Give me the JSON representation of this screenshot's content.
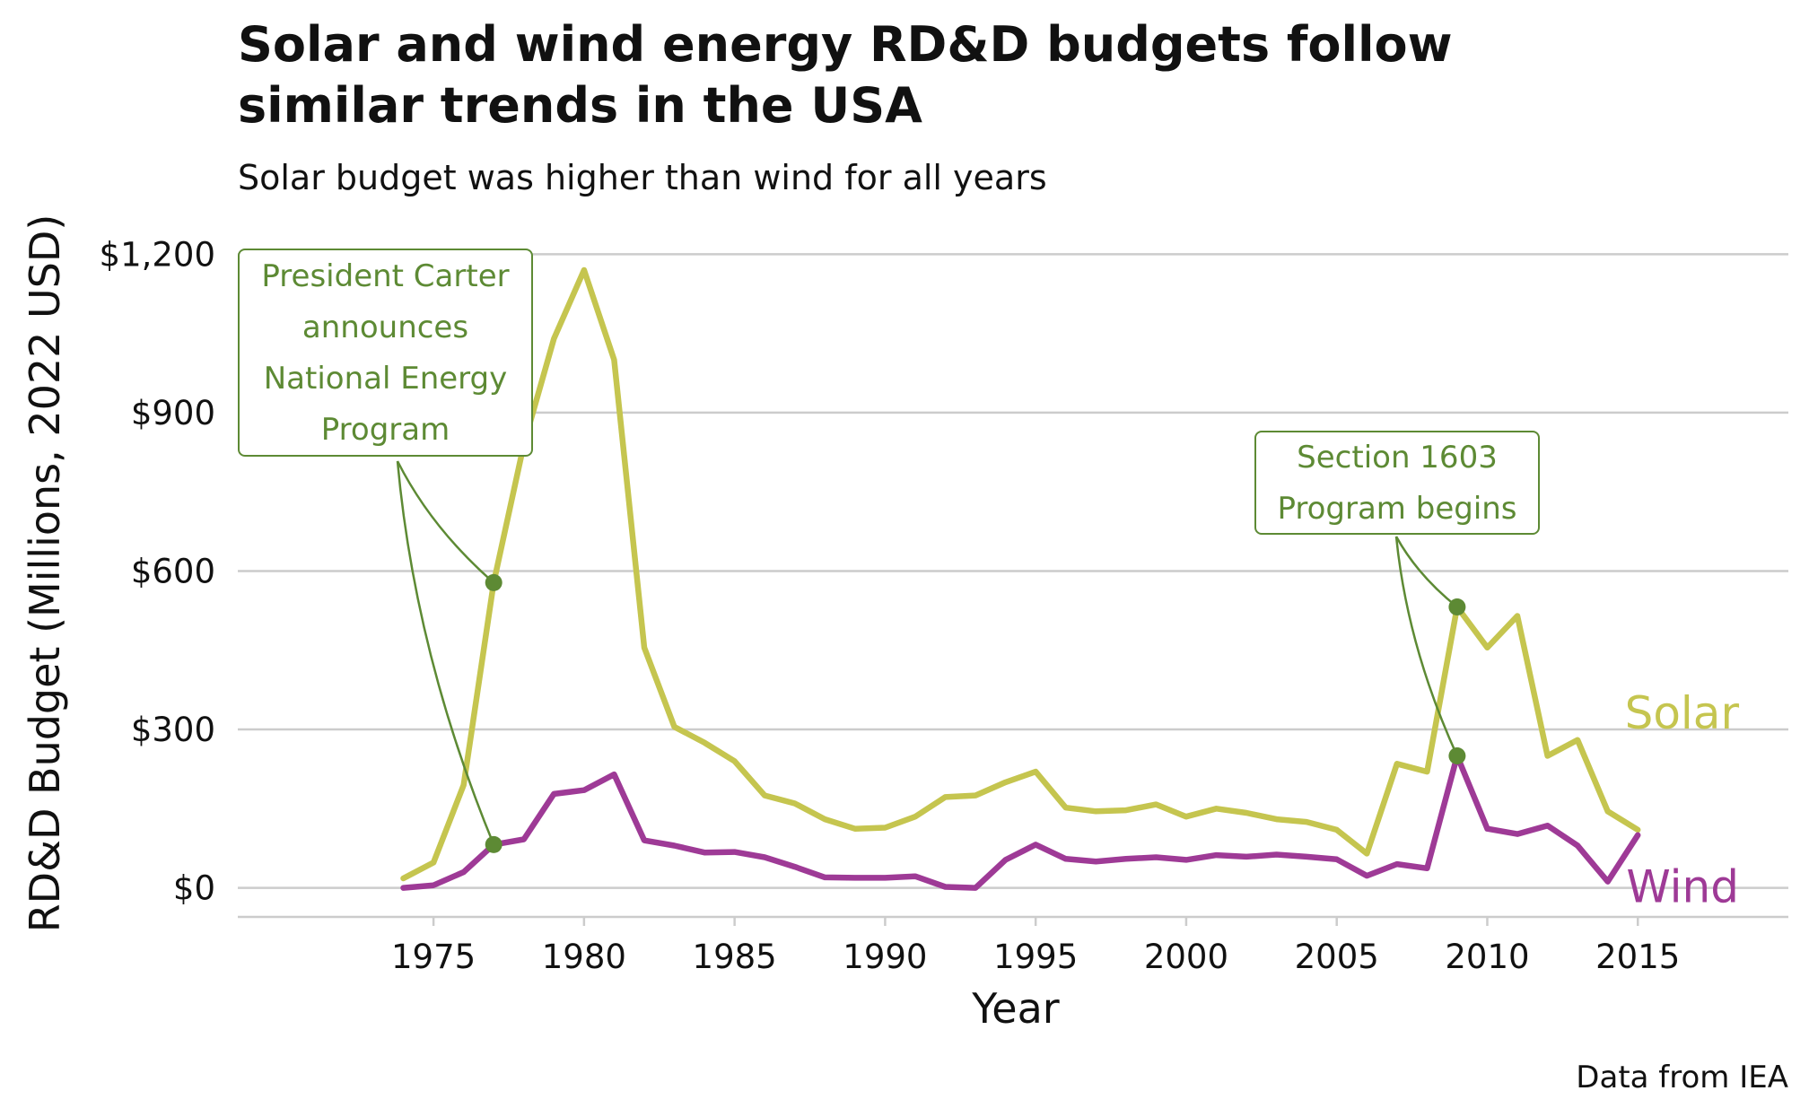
{
  "chart_data": {
    "type": "line",
    "title": "Solar and wind energy RD&D budgets follow similar trends in the USA",
    "title_lines": [
      "Solar and wind energy RD&D budgets follow",
      "similar trends in the USA"
    ],
    "subtitle": "Solar budget was higher than wind for all years",
    "caption": "Data from IEA",
    "xlabel": "Year",
    "ylabel": "RD&D Budget (Millions, 2022 USD)",
    "xlim": [
      1968.5,
      2020
    ],
    "ylim": [
      -55,
      1260
    ],
    "x_ticks": [
      1975,
      1980,
      1985,
      1990,
      1995,
      2000,
      2005,
      2010,
      2015
    ],
    "x_tick_labels": [
      "1975",
      "1980",
      "1985",
      "1990",
      "1995",
      "2000",
      "2005",
      "2010",
      "2015"
    ],
    "y_ticks": [
      0,
      300,
      600,
      900,
      1200
    ],
    "y_tick_labels": [
      "$0",
      "$300",
      "$600",
      "$900",
      "$1,200"
    ],
    "grid": "horizontal",
    "legend": "direct labels at line ends",
    "x": [
      1974,
      1975,
      1976,
      1977,
      1978,
      1979,
      1980,
      1981,
      1982,
      1983,
      1984,
      1985,
      1986,
      1987,
      1988,
      1989,
      1990,
      1991,
      1992,
      1993,
      1994,
      1995,
      1996,
      1997,
      1998,
      1999,
      2000,
      2001,
      2002,
      2003,
      2004,
      2005,
      2006,
      2007,
      2008,
      2009,
      2010,
      2011,
      2012,
      2013,
      2014,
      2015
    ],
    "series": [
      {
        "name": "Solar",
        "color": "#c5c54f",
        "values": [
          18,
          48,
          195,
          578,
          840,
          1040,
          1170,
          1000,
          455,
          305,
          275,
          240,
          175,
          160,
          130,
          112,
          114,
          135,
          172,
          175,
          200,
          220,
          152,
          145,
          147,
          158,
          135,
          150,
          142,
          130,
          125,
          110,
          65,
          235,
          220,
          532,
          455,
          515,
          250,
          280,
          145,
          110
        ]
      },
      {
        "name": "Wind",
        "color": "#9e3a96",
        "values": [
          0,
          5,
          30,
          82,
          92,
          178,
          185,
          215,
          90,
          80,
          67,
          68,
          58,
          40,
          20,
          19,
          19,
          22,
          2,
          0,
          53,
          82,
          55,
          50,
          55,
          58,
          53,
          62,
          59,
          63,
          59,
          54,
          23,
          45,
          37,
          250,
          112,
          102,
          118,
          80,
          12,
          100
        ]
      }
    ],
    "annotations": [
      {
        "text": "President Carter announces National Energy Program",
        "lines": [
          "President Carter",
          "announces",
          "National Energy",
          "Program"
        ],
        "year": 1977,
        "points": [
          578,
          82
        ],
        "color": "#5d8a34"
      },
      {
        "text": "Section 1603 Program begins",
        "lines": [
          "Section 1603",
          "Program begins"
        ],
        "year": 2009,
        "points": [
          532,
          250
        ],
        "color": "#5d8a34"
      }
    ],
    "colors": {
      "solar": "#c5c54f",
      "wind": "#9e3a96",
      "annotation": "#5d8a34",
      "grid": "#cccccc"
    }
  }
}
